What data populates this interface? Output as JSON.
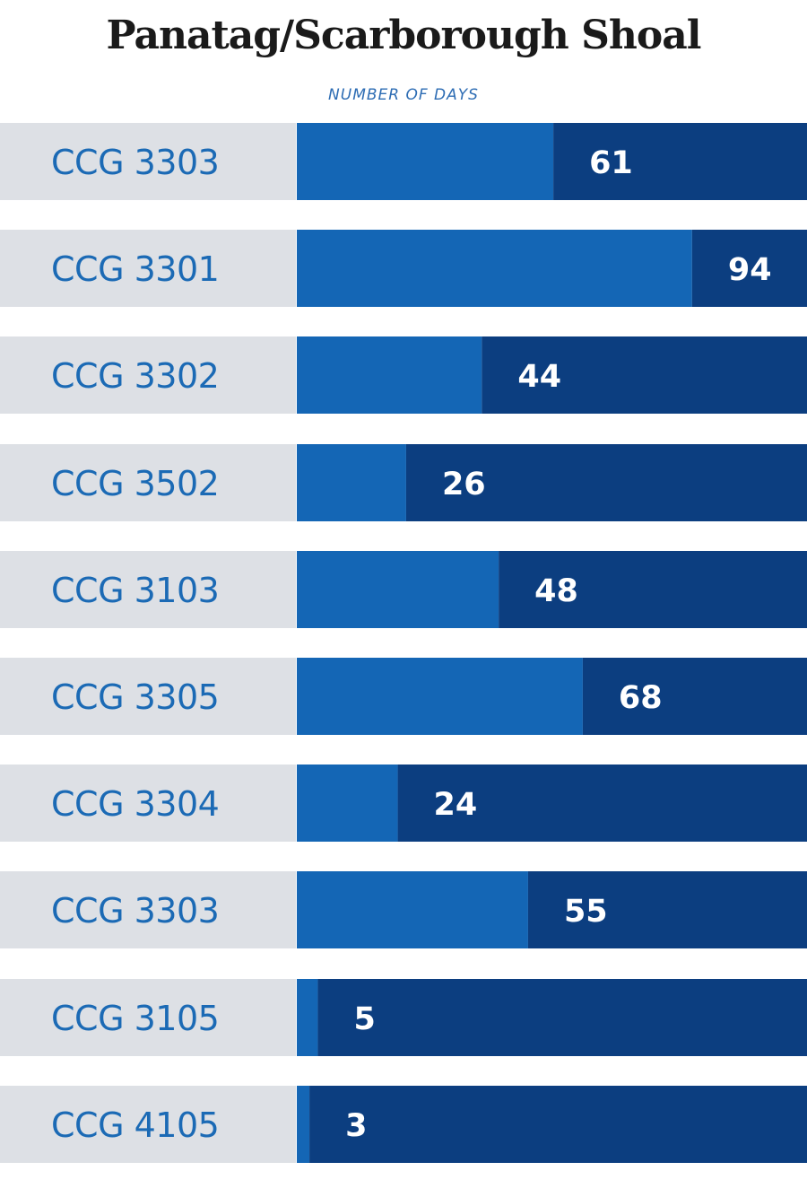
{
  "chart_data": {
    "type": "bar",
    "title": "Panatag/Scarborough Shoal",
    "subtitle": "NUMBER OF DAYS",
    "categories": [
      "CCG 3303",
      "CCG 3301",
      "CCG 3302",
      "CCG 3502",
      "CCG 3103",
      "CCG 3305",
      "CCG 3304",
      "CCG 3303",
      "CCG 3105",
      "CCG 4105"
    ],
    "values": [
      61,
      94,
      44,
      26,
      48,
      68,
      24,
      55,
      5,
      3
    ],
    "xlim": [
      0,
      122
    ],
    "grid": false,
    "legend": "none"
  },
  "colors": {
    "label_bg": "#dde0e5",
    "bar_light": "#1466b5",
    "bar_dark": "#0c3e80",
    "label_text": "#1b6ab5",
    "value_text": "#ffffff",
    "title_text": "#1a1a1a"
  }
}
